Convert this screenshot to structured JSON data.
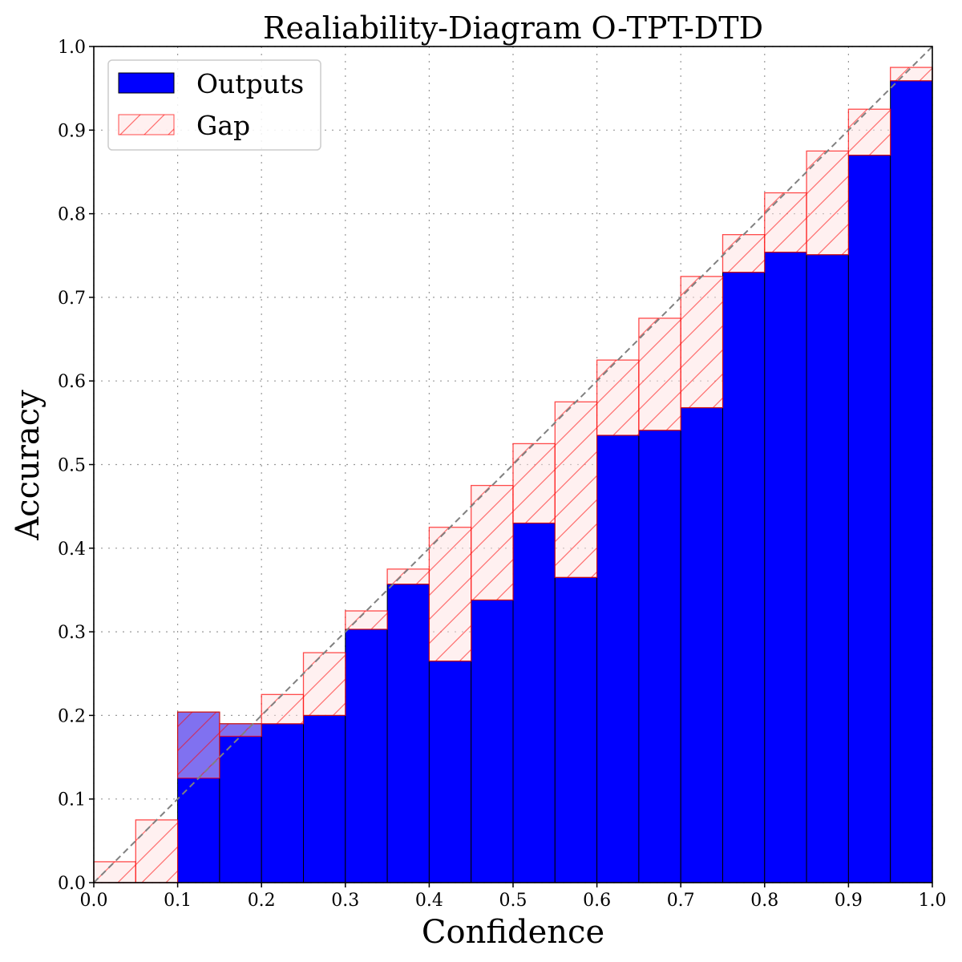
{
  "chart_data": {
    "type": "bar",
    "title": "Realiability-Diagram O-TPT-DTD",
    "xlabel": "Confidence",
    "ylabel": "Accuracy",
    "xlim": [
      0,
      1.0
    ],
    "ylim": [
      0,
      1.0
    ],
    "grid": true,
    "legend_position": "top-left",
    "x_ticks": [
      "0.0",
      "0.1",
      "0.2",
      "0.3",
      "0.4",
      "0.5",
      "0.6",
      "0.7",
      "0.8",
      "0.9",
      "1.0"
    ],
    "y_ticks": [
      "0.0",
      "0.1",
      "0.2",
      "0.3",
      "0.4",
      "0.5",
      "0.6",
      "0.7",
      "0.8",
      "0.9",
      "1.0"
    ],
    "bin_edges": [
      0.0,
      0.05,
      0.1,
      0.15,
      0.2,
      0.25,
      0.3,
      0.35,
      0.4,
      0.45,
      0.5,
      0.55,
      0.6,
      0.65,
      0.7,
      0.75,
      0.8,
      0.85,
      0.9,
      0.95,
      1.0
    ],
    "bin_centers": [
      0.025,
      0.075,
      0.125,
      0.175,
      0.225,
      0.275,
      0.325,
      0.375,
      0.425,
      0.475,
      0.525,
      0.575,
      0.625,
      0.675,
      0.725,
      0.775,
      0.825,
      0.875,
      0.925,
      0.975
    ],
    "series": [
      {
        "name": "Outputs",
        "color": "#0000ff",
        "values": [
          0,
          0,
          0.204,
          0.19,
          0.19,
          0.2,
          0.303,
          0.357,
          0.265,
          0.338,
          0.43,
          0.365,
          0.535,
          0.541,
          0.568,
          0.73,
          0.754,
          0.751,
          0.87,
          0.959
        ]
      },
      {
        "name": "Gap",
        "color": "#ff0000",
        "description_of_values": "from output to bin center"
      }
    ],
    "reference_line": {
      "from": [
        0,
        0
      ],
      "to": [
        1,
        1
      ],
      "style": "dashed",
      "color": "#808080"
    }
  }
}
